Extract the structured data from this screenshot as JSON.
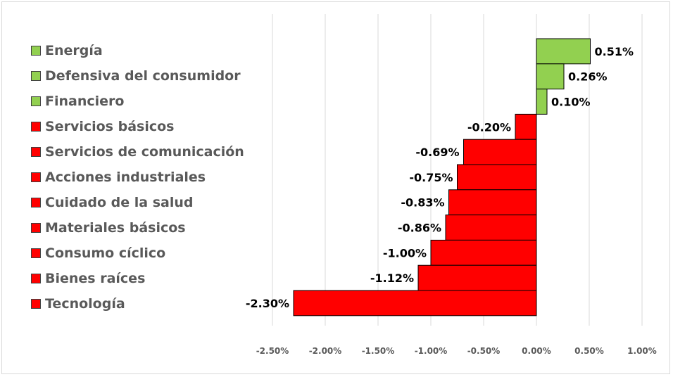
{
  "chart_data": {
    "type": "bar",
    "orientation": "horizontal",
    "title": "",
    "xlabel": "",
    "ylabel": "",
    "xlim": [
      -2.5,
      1.0
    ],
    "x_ticks": [
      -2.5,
      -2.0,
      -1.5,
      -1.0,
      -0.5,
      0.0,
      0.5,
      1.0
    ],
    "x_tick_labels": [
      "-2.50%",
      "-2.00%",
      "-1.50%",
      "-1.00%",
      "-0.50%",
      "0.00%",
      "0.50%",
      "1.00%"
    ],
    "grid": "vertical",
    "legend_position": "left",
    "colors": {
      "positive": "#92d050",
      "negative": "#ff0000",
      "border": "#000000"
    },
    "categories": [
      "Energía",
      "Defensiva del consumidor",
      "Financiero",
      "Servicios básicos",
      "Servicios de comunicación",
      "Acciones industriales",
      "Cuidado de la salud",
      "Materiales básicos",
      "Consumo cíclico",
      "Bienes raíces",
      "Tecnología"
    ],
    "values": [
      0.51,
      0.26,
      0.1,
      -0.2,
      -0.69,
      -0.75,
      -0.83,
      -0.86,
      -1.0,
      -1.12,
      -2.3
    ],
    "data_labels": [
      "0.51%",
      "0.26%",
      "0.10%",
      "-0.20%",
      "-0.69%",
      "-0.75%",
      "-0.83%",
      "-0.86%",
      "-1.00%",
      "-1.12%",
      "-2.30%"
    ]
  }
}
